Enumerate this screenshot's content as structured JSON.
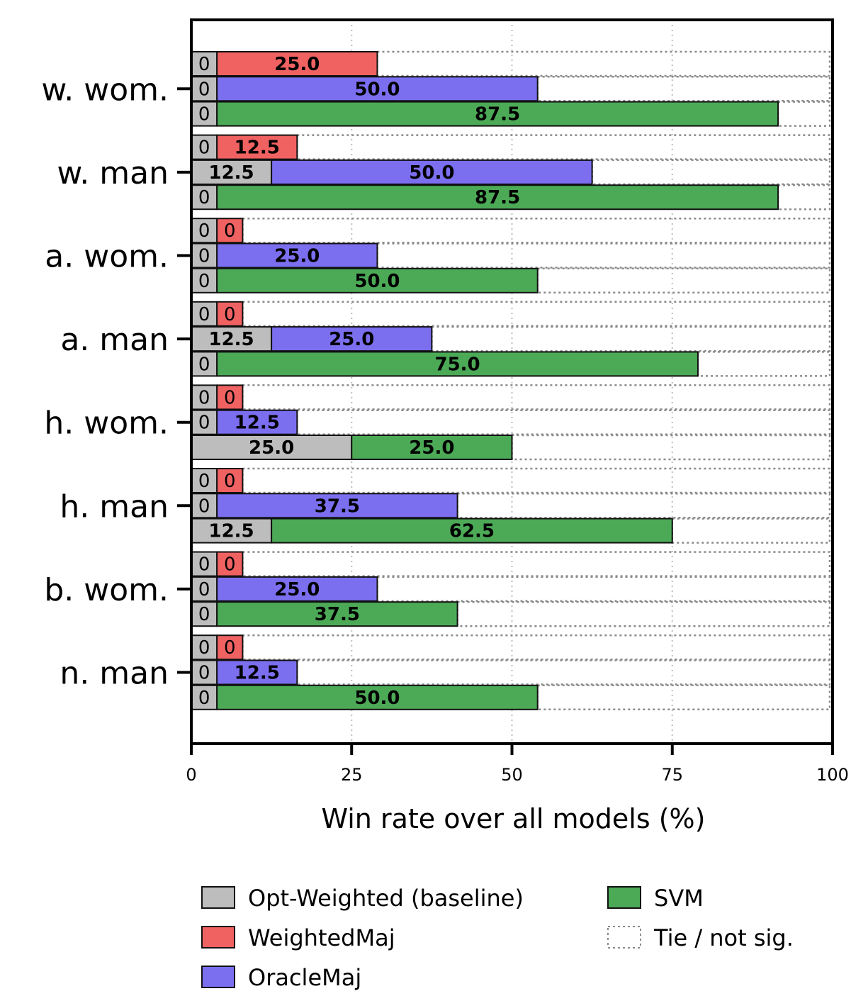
{
  "chart_data": {
    "type": "bar",
    "orientation": "horizontal",
    "stacked": true,
    "xlabel": "Win rate over all models (%)",
    "xlim": [
      0,
      100
    ],
    "xticks": [
      0,
      25,
      50,
      75,
      100
    ],
    "categories": [
      "w. wom.",
      "w. man",
      "a. wom.",
      "a. man",
      "h. wom.",
      "h. man",
      "b. wom.",
      "n. man"
    ],
    "colors": {
      "Opt-Weighted (baseline)": "#bdbdbd",
      "WeightedMaj": "#f06262",
      "OracleMaj": "#7b6ff0",
      "SVM": "#4caa57",
      "tie": "#8a8a8a"
    },
    "rows": [
      {
        "category": "w. wom.",
        "method": "WeightedMaj",
        "baseline": 0,
        "method_value": 25.0
      },
      {
        "category": "w. wom.",
        "method": "OracleMaj",
        "baseline": 0,
        "method_value": 50.0
      },
      {
        "category": "w. wom.",
        "method": "SVM",
        "baseline": 0,
        "method_value": 87.5
      },
      {
        "category": "w. man",
        "method": "WeightedMaj",
        "baseline": 0,
        "method_value": 12.5
      },
      {
        "category": "w. man",
        "method": "OracleMaj",
        "baseline": 12.5,
        "method_value": 50.0
      },
      {
        "category": "w. man",
        "method": "SVM",
        "baseline": 0,
        "method_value": 87.5
      },
      {
        "category": "a. wom.",
        "method": "WeightedMaj",
        "baseline": 0,
        "method_value": 0
      },
      {
        "category": "a. wom.",
        "method": "OracleMaj",
        "baseline": 0,
        "method_value": 25.0
      },
      {
        "category": "a. wom.",
        "method": "SVM",
        "baseline": 0,
        "method_value": 50.0
      },
      {
        "category": "a. man",
        "method": "WeightedMaj",
        "baseline": 0,
        "method_value": 0
      },
      {
        "category": "a. man",
        "method": "OracleMaj",
        "baseline": 12.5,
        "method_value": 25.0
      },
      {
        "category": "a. man",
        "method": "SVM",
        "baseline": 0,
        "method_value": 75.0
      },
      {
        "category": "h. wom.",
        "method": "WeightedMaj",
        "baseline": 0,
        "method_value": 0
      },
      {
        "category": "h. wom.",
        "method": "OracleMaj",
        "baseline": 0,
        "method_value": 12.5
      },
      {
        "category": "h. wom.",
        "method": "SVM",
        "baseline": 25.0,
        "method_value": 25.0
      },
      {
        "category": "h. man",
        "method": "WeightedMaj",
        "baseline": 0,
        "method_value": 0
      },
      {
        "category": "h. man",
        "method": "OracleMaj",
        "baseline": 0,
        "method_value": 37.5
      },
      {
        "category": "h. man",
        "method": "SVM",
        "baseline": 12.5,
        "method_value": 62.5
      },
      {
        "category": "b. wom.",
        "method": "WeightedMaj",
        "baseline": 0,
        "method_value": 0
      },
      {
        "category": "b. wom.",
        "method": "OracleMaj",
        "baseline": 0,
        "method_value": 25.0
      },
      {
        "category": "b. wom.",
        "method": "SVM",
        "baseline": 0,
        "method_value": 37.5
      },
      {
        "category": "n. man",
        "method": "WeightedMaj",
        "baseline": 0,
        "method_value": 0
      },
      {
        "category": "n. man",
        "method": "OracleMaj",
        "baseline": 0,
        "method_value": 12.5
      },
      {
        "category": "n. man",
        "method": "SVM",
        "baseline": 0,
        "method_value": 50.0
      }
    ],
    "legend": [
      {
        "label": "Opt-Weighted (baseline)",
        "key": "Opt-Weighted (baseline)",
        "style": "solid"
      },
      {
        "label": "WeightedMaj",
        "key": "WeightedMaj",
        "style": "solid"
      },
      {
        "label": "OracleMaj",
        "key": "OracleMaj",
        "style": "solid"
      },
      {
        "label": "SVM",
        "key": "SVM",
        "style": "solid"
      },
      {
        "label": "Tie / not sig.",
        "key": "tie",
        "style": "dotted"
      }
    ],
    "legend_position": "bottom"
  }
}
